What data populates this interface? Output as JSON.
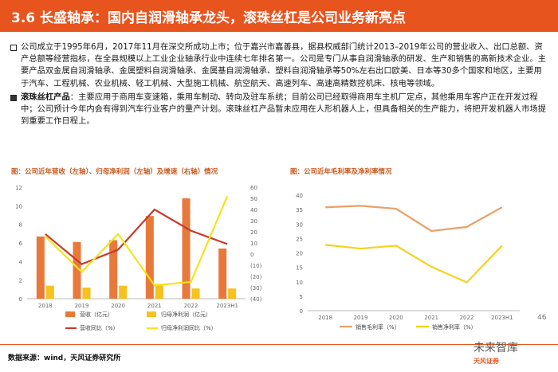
{
  "header": {
    "title": "3.6 长盛轴承：国内自润滑轴承龙头，滚珠丝杠是公司业务新亮点"
  },
  "bullets": [
    {
      "bold": "",
      "text": "公司成立于1995年6月，2017年11月在深交所成功上市；位于嘉兴市嘉善县，据县权威部门统计2013–2019年公司的营业收入、出口总额、资产总额等经营指标，在全县规模以上工业企业轴承行业中连续七年排名第一。公司是专门从事自润滑轴承的研发、生产和销售的高新技术企业。主要产品双金属自润滑轴承、金属塑料自润滑轴承、金属基自润滑轴承、塑料自润滑轴承等50%左右出口欧美、日本等30多个国家和地区，主要用于汽车、工程机械、农业机械、轻工机械、大型施工机械、航空航天、高速列车、高速高精数控机床、核电等领域。"
    },
    {
      "bold": "滚珠丝杠产品",
      "text": "：主要应用于商用车变速箱，乘用车制动、转向及驻车系统；目前公司已经取得商用车主机厂定点，其他乘用车客户正在开发过程中；公司预计今年内会有得到汽车行业客户的量产计划。滚珠丝杠产品暂未应用在人形机器人上，但具备相关的生产能力，将把开发机器人市场提到重要工作日程上。"
    }
  ],
  "chart_data": [
    {
      "type": "bar",
      "title": "图：公司近年营收（左轴）、归母净利润（左轴）及增速（右轴）情况",
      "categories": [
        "2018",
        "2019",
        "2020",
        "2021",
        "2022",
        "2023H1"
      ],
      "ylim_left": [
        0,
        12
      ],
      "yticks_left": [
        "0",
        "2",
        "4",
        "6",
        "8",
        "10",
        "12"
      ],
      "ylim_right": [
        -40,
        60
      ],
      "yticks_right": [
        "(40)",
        "(30)",
        "(20)",
        "(10)",
        "0",
        "10",
        "20",
        "30",
        "40",
        "50",
        "60"
      ],
      "series": [
        {
          "name": "营收（亿元）",
          "type": "bar",
          "axis": "left",
          "color": "#e8793a",
          "values": [
            6.7,
            6.1,
            6.3,
            8.9,
            10.8,
            5.4
          ]
        },
        {
          "name": "归母净利润（亿元）",
          "type": "bar",
          "axis": "left",
          "color": "#f6c21b",
          "values": [
            1.4,
            1.2,
            1.4,
            1.6,
            1.1,
            1.1
          ]
        },
        {
          "name": "营收同比（%）",
          "type": "line",
          "axis": "right",
          "color": "#c63b2c",
          "values": [
            18,
            -9,
            4,
            40,
            21,
            9
          ]
        },
        {
          "name": "归母净利润同比（%）",
          "type": "line",
          "axis": "right",
          "color": "#f6e21b",
          "values": [
            16,
            -16,
            18,
            -28,
            -25,
            52
          ]
        }
      ]
    },
    {
      "type": "line",
      "title": "图：公司近年毛利率及净利率情况",
      "categories": [
        "2018",
        "2019",
        "2020",
        "2021",
        "2022",
        "2023H1"
      ],
      "ylim": [
        0,
        40
      ],
      "yticks": [
        "0",
        "5",
        "10",
        "15",
        "20",
        "25",
        "30",
        "35",
        "40"
      ],
      "series": [
        {
          "name": "销售毛利率（%）",
          "color": "#e8a067",
          "values": [
            35.8,
            36.3,
            35.3,
            27.6,
            29.0,
            35.8
          ]
        },
        {
          "name": "销售净利率（%）",
          "color": "#f6d21b",
          "values": [
            22.8,
            21.5,
            22.5,
            15.2,
            9.8,
            22.5
          ]
        }
      ]
    }
  ],
  "footer": {
    "source": "数据来源：wind，天风证券研究所",
    "page": "46",
    "watermark": "未来智库",
    "logo": "天风证券"
  }
}
